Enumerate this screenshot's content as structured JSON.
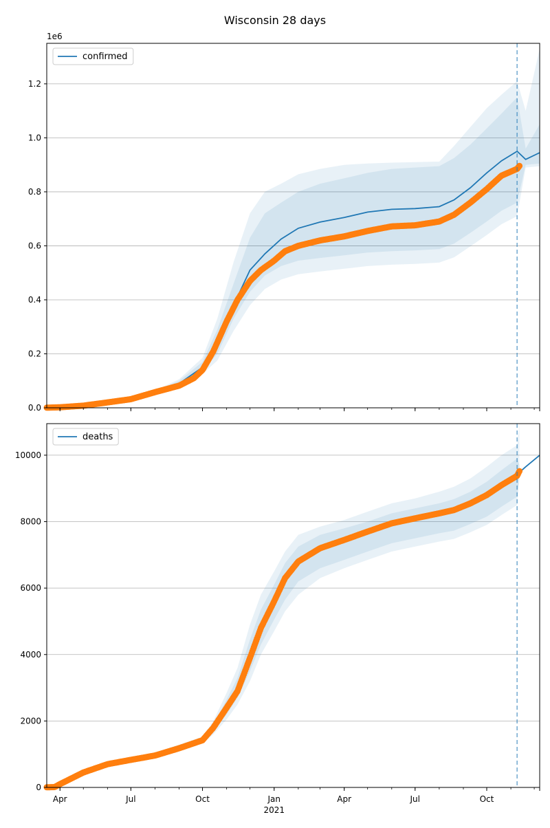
{
  "figure": {
    "title": "Wisconsin 28 days"
  },
  "colors": {
    "model": "#1f77b4",
    "observed": "#ff7f0e",
    "grid": "#b0b0b0",
    "axis": "#000000"
  },
  "x_axis": {
    "start": "2020-03-15",
    "end": "2021-12-08",
    "ticks": [
      {
        "date": "2020-04-01",
        "label": "Apr"
      },
      {
        "date": "2020-07-01",
        "label": "Jul"
      },
      {
        "date": "2020-10-01",
        "label": "Oct"
      },
      {
        "date": "2021-01-01",
        "label": "Jan"
      },
      {
        "date": "2021-04-01",
        "label": "Apr"
      },
      {
        "date": "2021-07-01",
        "label": "Jul"
      },
      {
        "date": "2021-10-01",
        "label": "Oct"
      }
    ],
    "year_label": {
      "date": "2021-01-01",
      "label": "2021"
    }
  },
  "chart_data": [
    {
      "type": "line",
      "legend": "confirmed",
      "legend_position": "top-left",
      "grid": "horizontal",
      "ylim": [
        0,
        1350000
      ],
      "y_ticks": [
        0,
        200000,
        400000,
        600000,
        800000,
        1000000,
        1200000
      ],
      "y_tick_labels": [
        "0.0",
        "0.2",
        "0.4",
        "0.6",
        "0.8",
        "1.0",
        "1.2"
      ],
      "y_offset_label": "1e6",
      "forecast_start": "2021-11-09",
      "series_model": {
        "name": "confirmed",
        "x": [
          "2020-03-15",
          "2020-05-01",
          "2020-06-15",
          "2020-08-01",
          "2020-09-01",
          "2020-10-01",
          "2020-10-20",
          "2020-11-10",
          "2020-12-01",
          "2020-12-20",
          "2021-01-10",
          "2021-02-01",
          "2021-03-01",
          "2021-04-01",
          "2021-05-01",
          "2021-06-01",
          "2021-07-01",
          "2021-08-01",
          "2021-08-20",
          "2021-09-10",
          "2021-10-01",
          "2021-10-20",
          "2021-11-09",
          "2021-11-20",
          "2021-12-08"
        ],
        "y": [
          500,
          10000,
          25000,
          55000,
          90000,
          150000,
          240000,
          380000,
          510000,
          570000,
          625000,
          665000,
          688000,
          705000,
          725000,
          735000,
          738000,
          745000,
          770000,
          815000,
          870000,
          915000,
          950000,
          920000,
          945000
        ]
      },
      "series_observed": {
        "x": [
          "2020-03-15",
          "2020-04-01",
          "2020-05-01",
          "2020-06-01",
          "2020-07-01",
          "2020-08-01",
          "2020-09-01",
          "2020-09-20",
          "2020-10-01",
          "2020-10-15",
          "2020-11-01",
          "2020-11-15",
          "2020-12-01",
          "2020-12-15",
          "2021-01-01",
          "2021-01-15",
          "2021-02-01",
          "2021-03-01",
          "2021-04-01",
          "2021-05-01",
          "2021-06-01",
          "2021-07-01",
          "2021-08-01",
          "2021-08-20",
          "2021-09-10",
          "2021-10-01",
          "2021-10-20",
          "2021-11-09",
          "2021-11-12"
        ],
        "y": [
          500,
          2000,
          8000,
          20000,
          32000,
          58000,
          82000,
          110000,
          140000,
          210000,
          320000,
          400000,
          470000,
          510000,
          545000,
          580000,
          600000,
          620000,
          635000,
          655000,
          672000,
          676000,
          690000,
          715000,
          760000,
          810000,
          860000,
          885000,
          896000
        ]
      },
      "bands": [
        {
          "lower": [
            0,
            9000,
            23000,
            50000,
            82000,
            135000,
            200000,
            330000,
            430000,
            490000,
            525000,
            545000,
            555000,
            565000,
            575000,
            580000,
            583000,
            588000,
            608000,
            648000,
            690000,
            730000,
            760000,
            900000,
            905000
          ],
          "upper": [
            1000,
            11500,
            27500,
            60000,
            100000,
            170000,
            290000,
            460000,
            630000,
            720000,
            760000,
            800000,
            830000,
            850000,
            870000,
            885000,
            890000,
            895000,
            925000,
            975000,
            1035000,
            1090000,
            1150000,
            960000,
            1050000
          ]
        },
        {
          "lower": [
            0,
            8000,
            21000,
            46000,
            76000,
            125000,
            175000,
            285000,
            380000,
            440000,
            475000,
            495000,
            505000,
            515000,
            525000,
            530000,
            533000,
            538000,
            557000,
            598000,
            640000,
            680000,
            710000,
            890000,
            895000
          ],
          "upper": [
            1000,
            12500,
            29500,
            64000,
            106000,
            185000,
            330000,
            540000,
            720000,
            800000,
            830000,
            865000,
            885000,
            900000,
            905000,
            908000,
            910000,
            912000,
            970000,
            1040000,
            1110000,
            1160000,
            1210000,
            1100000,
            1330000
          ]
        }
      ]
    },
    {
      "type": "line",
      "legend": "deaths",
      "legend_position": "top-left",
      "grid": "horizontal",
      "ylim": [
        0,
        10950
      ],
      "y_ticks": [
        0,
        2000,
        4000,
        6000,
        8000,
        10000
      ],
      "y_tick_labels": [
        "0",
        "2000",
        "4000",
        "6000",
        "8000",
        "10000"
      ],
      "forecast_start": "2021-11-09",
      "series_model": {
        "name": "deaths",
        "x": [
          "2021-11-09",
          "2021-11-20",
          "2021-12-08"
        ],
        "y": [
          9420,
          9650,
          10000
        ]
      },
      "series_observed": {
        "x": [
          "2020-03-15",
          "2020-03-25",
          "2020-04-01",
          "2020-05-01",
          "2020-06-01",
          "2020-07-01",
          "2020-08-01",
          "2020-09-01",
          "2020-10-01",
          "2020-10-15",
          "2020-11-01",
          "2020-11-15",
          "2020-12-01",
          "2020-12-15",
          "2021-01-01",
          "2021-01-15",
          "2021-02-01",
          "2021-03-01",
          "2021-04-01",
          "2021-05-01",
          "2021-06-01",
          "2021-07-01",
          "2021-08-01",
          "2021-08-20",
          "2021-09-10",
          "2021-10-01",
          "2021-10-20",
          "2021-11-09",
          "2021-11-12"
        ],
        "y": [
          5,
          10,
          100,
          450,
          700,
          830,
          960,
          1180,
          1420,
          1800,
          2400,
          2900,
          3900,
          4800,
          5600,
          6300,
          6800,
          7200,
          7450,
          7700,
          7950,
          8100,
          8250,
          8350,
          8550,
          8800,
          9100,
          9380,
          9520
        ]
      },
      "bands": [
        {
          "lower": [
            5,
            10,
            90,
            420,
            660,
            790,
            910,
            1120,
            1360,
            1700,
            2200,
            2700,
            3500,
            4300,
            5050,
            5650,
            6200,
            6600,
            6850,
            7100,
            7350,
            7500,
            7650,
            7730,
            7930,
            8150,
            8450,
            8750,
            9400
          ],
          "upper": [
            5,
            12,
            110,
            480,
            740,
            870,
            1010,
            1240,
            1480,
            1900,
            2650,
            3300,
            4450,
            5350,
            6100,
            6750,
            7250,
            7600,
            7800,
            8000,
            8250,
            8400,
            8550,
            8680,
            8900,
            9200,
            9550,
            9900,
            9700
          ]
        },
        {
          "lower": [
            5,
            10,
            80,
            400,
            630,
            760,
            880,
            1080,
            1320,
            1600,
            2050,
            2500,
            3200,
            4000,
            4700,
            5300,
            5800,
            6300,
            6600,
            6850,
            7100,
            7250,
            7400,
            7480,
            7680,
            7900,
            8200,
            8500,
            9300
          ],
          "upper": [
            5,
            14,
            120,
            510,
            770,
            900,
            1050,
            1290,
            1530,
            2000,
            2850,
            3600,
            4900,
            5800,
            6500,
            7100,
            7600,
            7850,
            8050,
            8300,
            8550,
            8700,
            8900,
            9050,
            9300,
            9650,
            10000,
            10300,
            10900
          ]
        }
      ]
    }
  ]
}
